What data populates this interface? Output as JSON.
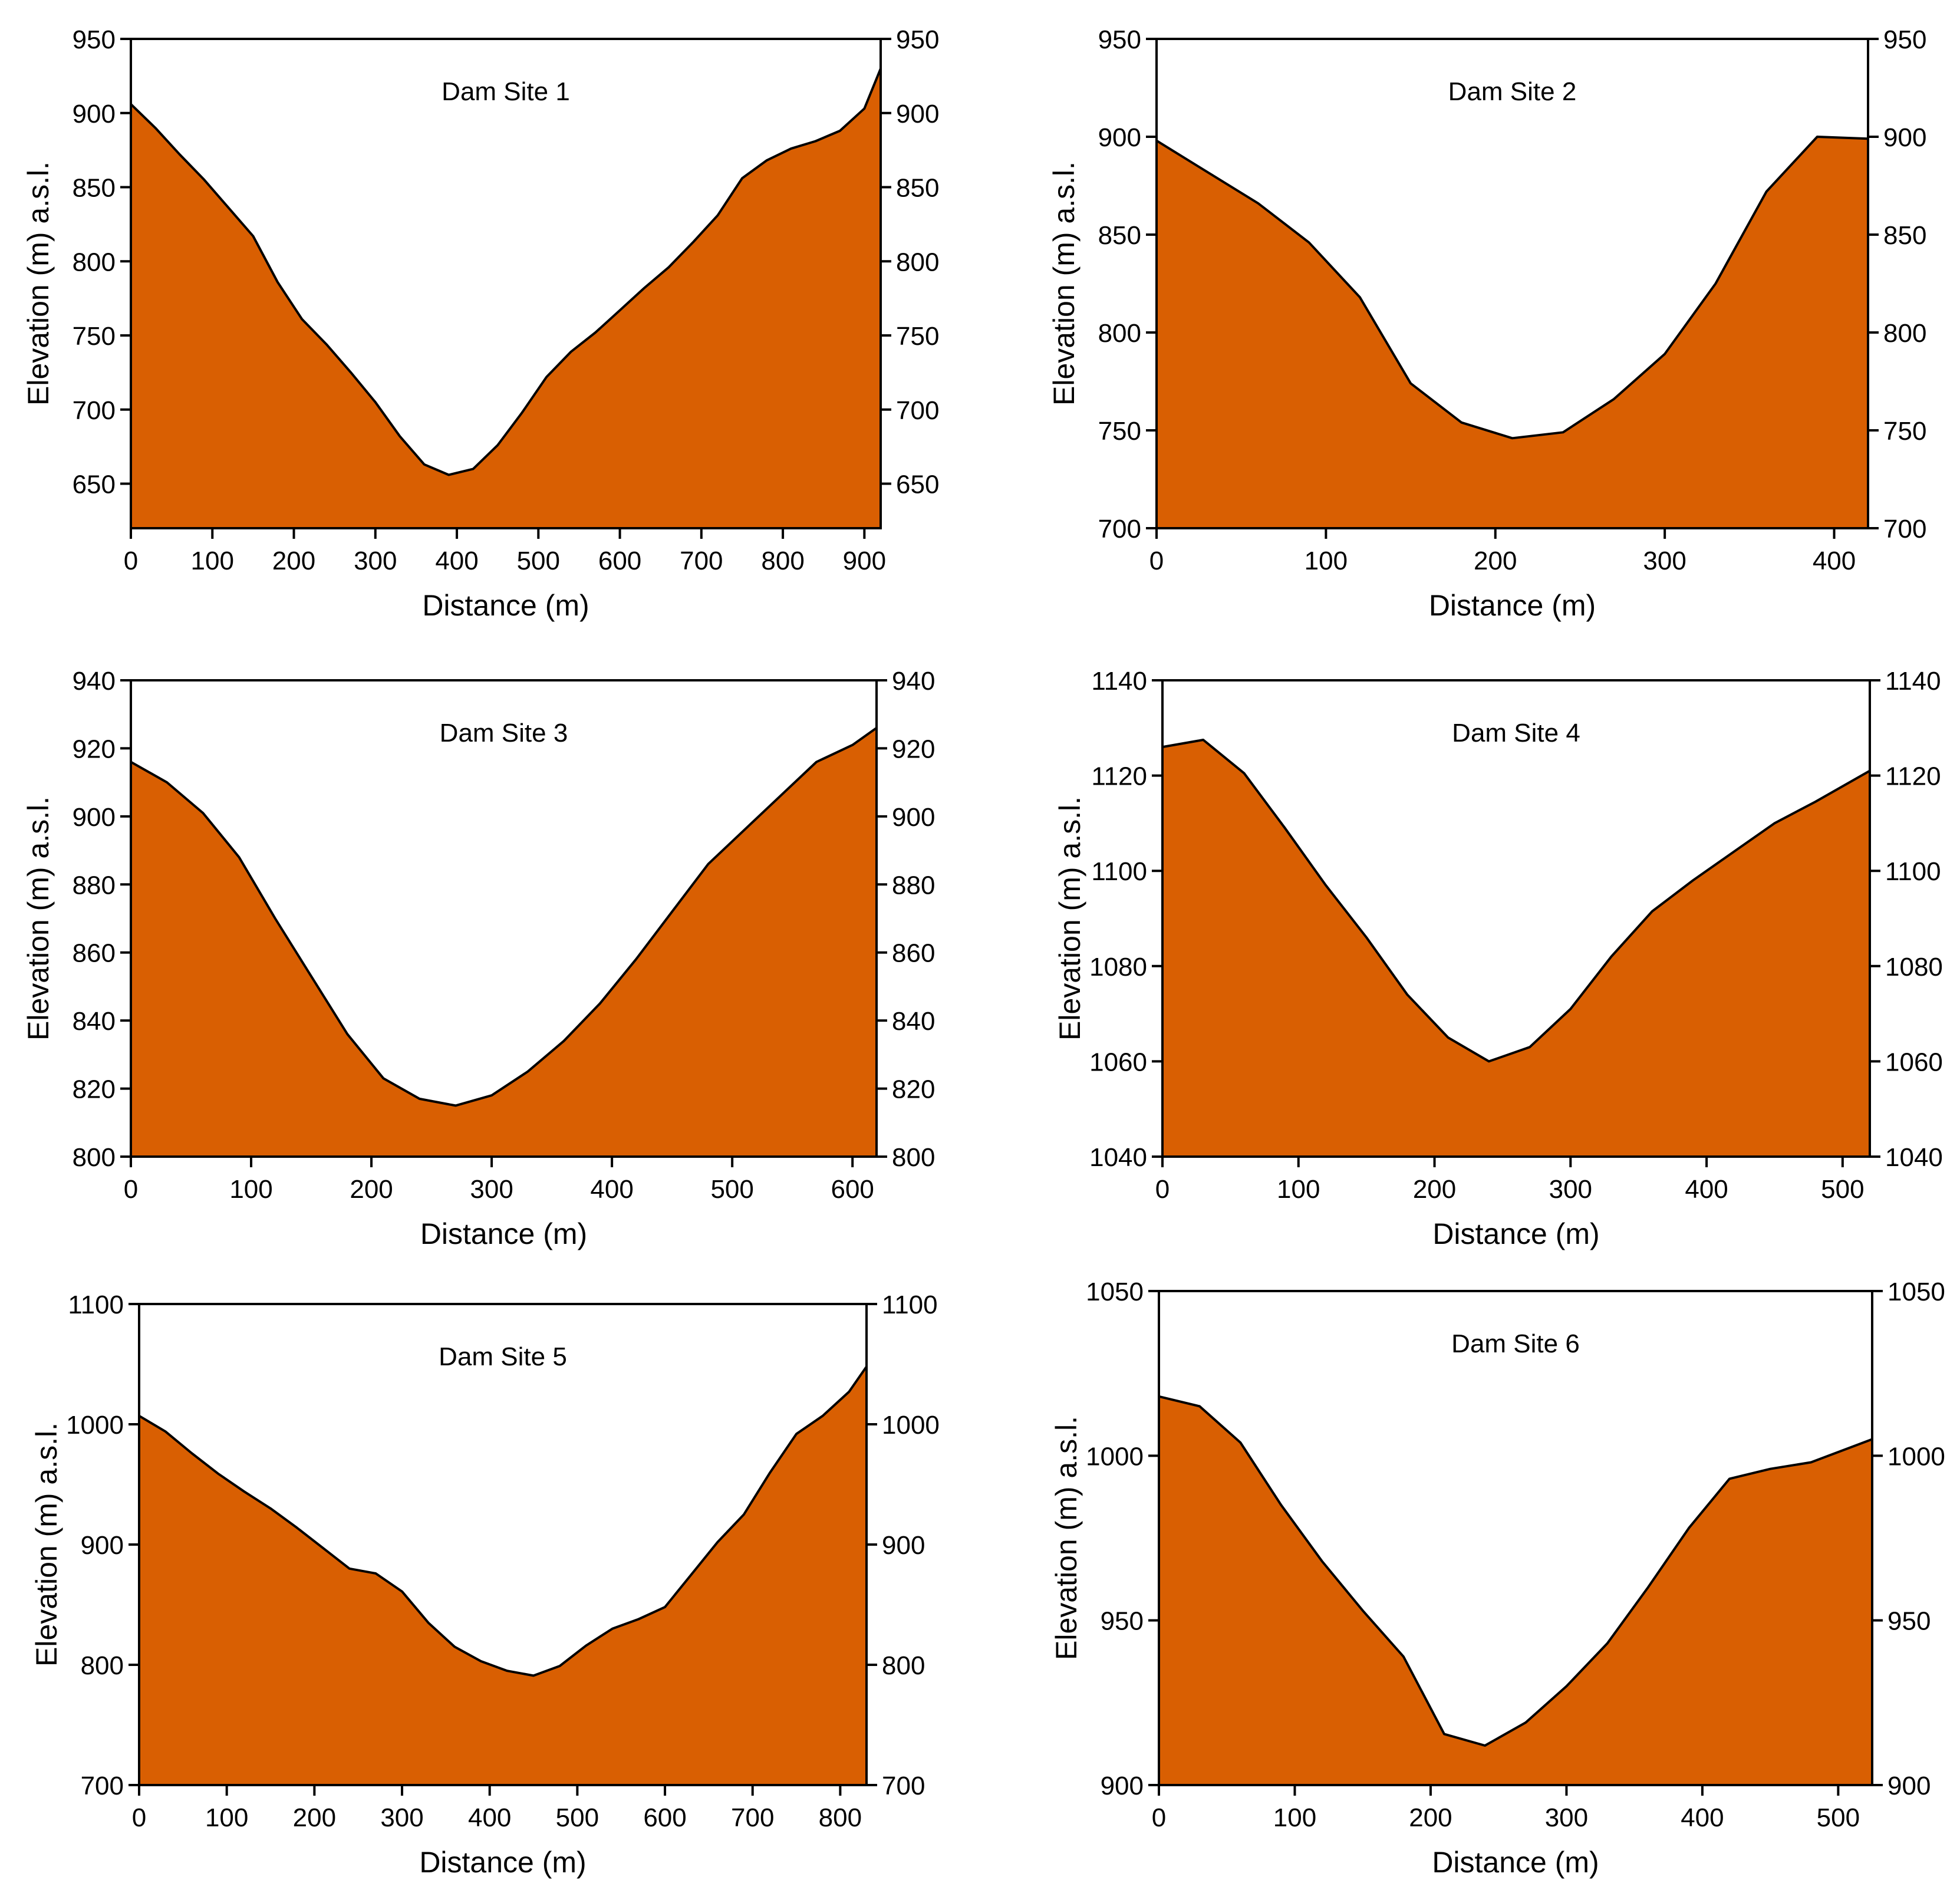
{
  "colors": {
    "fill": "#D95F02",
    "line": "#000000",
    "background": "#FFFFFF"
  },
  "chart_data": [
    {
      "type": "area",
      "title": "Dam Site 1",
      "xlabel": "Distance (m)",
      "ylabel": "Elevation (m) a.s.l.",
      "xlim": [
        0,
        920
      ],
      "ylim": [
        620,
        950
      ],
      "xticks": [
        0,
        100,
        200,
        300,
        400,
        500,
        600,
        700,
        800,
        900
      ],
      "yticks": [
        650,
        700,
        750,
        800,
        850,
        900,
        950
      ],
      "x": [
        0,
        30,
        60,
        90,
        120,
        150,
        180,
        210,
        240,
        270,
        300,
        330,
        360,
        390,
        420,
        450,
        480,
        510,
        540,
        570,
        600,
        630,
        660,
        690,
        720,
        750,
        780,
        810,
        840,
        870,
        900,
        920
      ],
      "y": [
        906,
        890,
        872,
        855,
        836,
        817,
        786,
        761,
        744,
        725,
        705,
        682,
        663,
        656,
        660,
        676,
        698,
        722,
        739,
        752,
        767,
        782,
        796,
        813,
        831,
        856,
        868,
        876,
        881,
        888,
        903,
        930
      ]
    },
    {
      "type": "area",
      "title": "Dam Site 2",
      "xlabel": "Distance (m)",
      "ylabel": "Elevation (m) a.s.l.",
      "xlim": [
        0,
        420
      ],
      "ylim": [
        700,
        950
      ],
      "xticks": [
        0,
        100,
        200,
        300,
        400
      ],
      "yticks": [
        700,
        750,
        800,
        850,
        900,
        950
      ],
      "x": [
        0,
        30,
        60,
        90,
        120,
        150,
        180,
        210,
        240,
        270,
        300,
        330,
        360,
        390,
        420
      ],
      "y": [
        898,
        882,
        866,
        846,
        818,
        774,
        754,
        746,
        749,
        766,
        789,
        825,
        872,
        900,
        899
      ]
    },
    {
      "type": "area",
      "title": "Dam Site 3",
      "xlabel": "Distance (m)",
      "ylabel": "Elevation (m) a.s.l.",
      "xlim": [
        0,
        620
      ],
      "ylim": [
        800,
        940
      ],
      "xticks": [
        0,
        100,
        200,
        300,
        400,
        500,
        600
      ],
      "yticks": [
        800,
        820,
        840,
        860,
        880,
        900,
        920,
        940
      ],
      "x": [
        0,
        30,
        60,
        90,
        120,
        150,
        180,
        210,
        240,
        270,
        300,
        330,
        360,
        390,
        420,
        450,
        480,
        510,
        540,
        570,
        600,
        620
      ],
      "y": [
        916,
        910,
        901,
        888,
        870,
        853,
        836,
        823,
        817,
        815,
        818,
        825,
        834,
        845,
        858,
        872,
        886,
        896,
        906,
        916,
        921,
        926
      ]
    },
    {
      "type": "area",
      "title": "Dam Site 4",
      "xlabel": "Distance (m)",
      "ylabel": "Elevation (m) a.s.l.",
      "xlim": [
        0,
        520
      ],
      "ylim": [
        1040,
        1140
      ],
      "xticks": [
        0,
        100,
        200,
        300,
        400,
        500
      ],
      "yticks": [
        1040,
        1060,
        1080,
        1100,
        1120,
        1140
      ],
      "x": [
        0,
        30,
        60,
        90,
        120,
        150,
        180,
        210,
        240,
        270,
        300,
        330,
        360,
        390,
        420,
        450,
        480,
        520
      ],
      "y": [
        1126,
        1127.5,
        1120.5,
        1109,
        1097,
        1086,
        1074,
        1065,
        1060,
        1063,
        1071,
        1082,
        1091.5,
        1098,
        1104,
        1110,
        1114.5,
        1121
      ]
    },
    {
      "type": "area",
      "title": "Dam Site 5",
      "xlabel": "Distance (m)",
      "ylabel": "Elevation (m) a.s.l.",
      "xlim": [
        0,
        830
      ],
      "ylim": [
        700,
        1100
      ],
      "xticks": [
        0,
        100,
        200,
        300,
        400,
        500,
        600,
        700,
        800
      ],
      "yticks": [
        700,
        800,
        900,
        1000,
        1100
      ],
      "x": [
        0,
        30,
        60,
        90,
        120,
        150,
        180,
        210,
        240,
        270,
        300,
        330,
        360,
        390,
        420,
        450,
        480,
        510,
        540,
        570,
        600,
        630,
        660,
        690,
        720,
        750,
        780,
        810,
        830
      ],
      "y": [
        1007,
        994,
        976,
        959,
        944,
        930,
        914,
        897,
        880,
        876,
        861,
        835,
        815,
        803,
        795,
        791,
        799,
        816,
        830,
        838,
        848,
        875,
        902,
        925,
        960,
        992,
        1007,
        1027,
        1048
      ]
    },
    {
      "type": "area",
      "title": "Dam Site 6",
      "xlabel": "Distance (m)",
      "ylabel": "Elevation (m) a.s.l.",
      "xlim": [
        0,
        525
      ],
      "ylim": [
        900,
        1050
      ],
      "xticks": [
        0,
        100,
        200,
        300,
        400,
        500
      ],
      "yticks": [
        900,
        950,
        1000,
        1050
      ],
      "x": [
        0,
        30,
        60,
        90,
        120,
        150,
        180,
        210,
        240,
        270,
        300,
        330,
        360,
        390,
        420,
        450,
        480,
        525
      ],
      "y": [
        1018,
        1015,
        1004,
        985,
        968,
        953,
        939,
        915.5,
        912,
        919,
        930,
        943,
        960,
        978,
        993,
        996,
        998,
        1005
      ]
    }
  ]
}
